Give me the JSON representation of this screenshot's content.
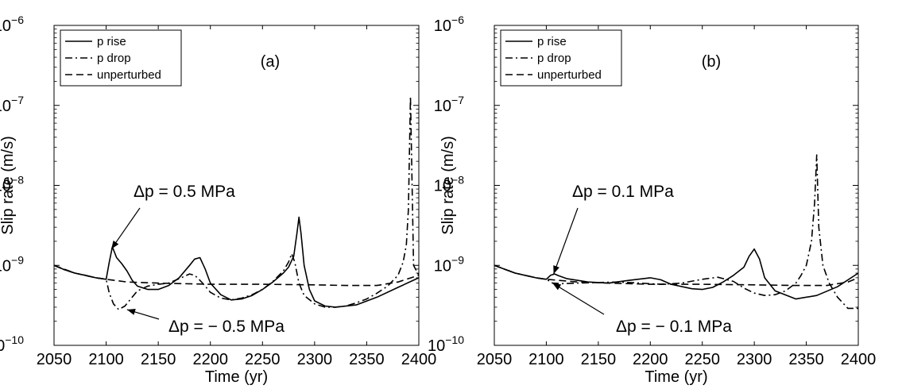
{
  "chart_data": [
    {
      "type": "line",
      "panel_label": "(a)",
      "xlabel": "Time (yr)",
      "ylabel": "Slip rate (m/s)",
      "xlim": [
        2050,
        2400
      ],
      "ylim": [
        1e-10,
        1e-06
      ],
      "yscale": "log",
      "x_ticks": [
        "2050",
        "2100",
        "2150",
        "2200",
        "2250",
        "2300",
        "2350",
        "2400"
      ],
      "y_ticks": [
        {
          "base": "10",
          "exp": "−10"
        },
        {
          "base": "10",
          "exp": "−9"
        },
        {
          "base": "10",
          "exp": "−8"
        },
        {
          "base": "10",
          "exp": "−7"
        },
        {
          "base": "10",
          "exp": "−6"
        }
      ],
      "legend": {
        "placement": "top-left",
        "entries": [
          "p rise",
          "p drop",
          "unperturbed"
        ]
      },
      "annotations": [
        {
          "text": "Δp = 0.5 MPa",
          "points_to": [
            2105,
            1.6e-09
          ]
        },
        {
          "text": "Δp = − 0.5 MPa",
          "points_to": [
            2120,
            2.8e-10
          ]
        }
      ],
      "series": [
        {
          "name": "p rise",
          "style": "solid",
          "x": [
            2050,
            2060,
            2070,
            2080,
            2090,
            2100,
            2103,
            2106,
            2110,
            2115,
            2120,
            2125,
            2130,
            2140,
            2150,
            2160,
            2170,
            2180,
            2185,
            2190,
            2195,
            2200,
            2210,
            2220,
            2230,
            2240,
            2250,
            2260,
            2270,
            2275,
            2280,
            2283,
            2285,
            2287,
            2290,
            2295,
            2300,
            2310,
            2320,
            2340,
            2360,
            2380,
            2400
          ],
          "y": [
            1e-09,
            8.8e-10,
            8e-10,
            7.5e-10,
            7e-10,
            6.7e-10,
            1.1e-09,
            1.7e-09,
            1.25e-09,
            1.05e-09,
            8.5e-10,
            6.5e-10,
            5.5e-10,
            5e-10,
            5e-10,
            5.6e-10,
            7e-10,
            1e-09,
            1.2e-09,
            1.25e-09,
            9e-10,
            6e-10,
            4.3e-10,
            3.7e-10,
            3.8e-10,
            4.2e-10,
            5e-10,
            6.2e-10,
            8e-10,
            9.5e-10,
            1.3e-09,
            2.5e-09,
            4e-09,
            2.5e-09,
            1e-09,
            5e-10,
            3.6e-10,
            3.1e-10,
            3e-10,
            3.2e-10,
            4e-10,
            5.3e-10,
            7e-10
          ]
        },
        {
          "name": "p drop",
          "style": "dashdot",
          "x": [
            2050,
            2060,
            2070,
            2080,
            2090,
            2100,
            2103,
            2107,
            2112,
            2118,
            2125,
            2130,
            2140,
            2150,
            2160,
            2170,
            2180,
            2185,
            2190,
            2195,
            2200,
            2210,
            2220,
            2230,
            2240,
            2250,
            2260,
            2270,
            2275,
            2278,
            2281,
            2285,
            2290,
            2300,
            2310,
            2320,
            2330,
            2340,
            2350,
            2360,
            2370,
            2380,
            2385,
            2388,
            2390,
            2392,
            2395,
            2400
          ],
          "y": [
            1e-09,
            8.8e-10,
            8e-10,
            7.5e-10,
            7e-10,
            6.7e-10,
            4.5e-10,
            3.3e-10,
            2.8e-10,
            3.1e-10,
            4e-10,
            4.8e-10,
            5.5e-10,
            5.8e-10,
            6e-10,
            6.8e-10,
            7.8e-10,
            7.5e-10,
            6.5e-10,
            5.5e-10,
            4.6e-10,
            3.9e-10,
            3.7e-10,
            3.9e-10,
            4.3e-10,
            5e-10,
            6.3e-10,
            8.5e-10,
            1.1e-09,
            1.4e-09,
            1.1e-09,
            6e-10,
            4.2e-10,
            3.3e-10,
            3e-10,
            3e-10,
            3.1e-10,
            3.4e-10,
            3.8e-10,
            4.5e-10,
            5.5e-10,
            7.5e-10,
            1.1e-09,
            1.8e-09,
            5e-09,
            1.3e-07,
            1e-09,
            7.5e-10
          ]
        },
        {
          "name": "unperturbed",
          "style": "dashed",
          "x": [
            2050,
            2070,
            2090,
            2100,
            2120,
            2150,
            2200,
            2250,
            2300,
            2330,
            2360,
            2380,
            2400
          ],
          "y": [
            1e-09,
            8e-10,
            7e-10,
            6.7e-10,
            6.2e-10,
            6e-10,
            5.8e-10,
            5.8e-10,
            5.7e-10,
            5.6e-10,
            5.6e-10,
            6.2e-10,
            7.5e-10
          ]
        }
      ]
    },
    {
      "type": "line",
      "panel_label": "(b)",
      "xlabel": "Time (yr)",
      "ylabel": "Slip rate (m/s)",
      "xlim": [
        2050,
        2400
      ],
      "ylim": [
        1e-10,
        1e-06
      ],
      "yscale": "log",
      "x_ticks": [
        "2050",
        "2100",
        "2150",
        "2200",
        "2250",
        "2300",
        "2350",
        "2400"
      ],
      "y_ticks": [
        {
          "base": "10",
          "exp": "−10"
        },
        {
          "base": "10",
          "exp": "−9"
        },
        {
          "base": "10",
          "exp": "−8"
        },
        {
          "base": "10",
          "exp": "−7"
        },
        {
          "base": "10",
          "exp": "−6"
        }
      ],
      "legend": {
        "placement": "top-left",
        "entries": [
          "p rise",
          "p drop",
          "unperturbed"
        ]
      },
      "annotations": [
        {
          "text": "Δp = 0.1 MPa",
          "points_to": [
            2107,
            7.8e-10
          ]
        },
        {
          "text": "Δp = − 0.1 MPa",
          "points_to": [
            2106,
            6e-10
          ]
        }
      ],
      "series": [
        {
          "name": "p rise",
          "style": "solid",
          "x": [
            2050,
            2070,
            2090,
            2100,
            2104,
            2108,
            2112,
            2120,
            2140,
            2160,
            2180,
            2200,
            2210,
            2220,
            2240,
            2250,
            2260,
            2270,
            2280,
            2290,
            2295,
            2300,
            2305,
            2310,
            2320,
            2340,
            2360,
            2380,
            2400
          ],
          "y": [
            1e-09,
            8e-10,
            7e-10,
            6.7e-10,
            7.5e-10,
            7.8e-10,
            7.4e-10,
            6.8e-10,
            6.2e-10,
            6e-10,
            6.5e-10,
            7e-10,
            6.6e-10,
            5.8e-10,
            5.1e-10,
            5e-10,
            5.3e-10,
            6.2e-10,
            7.5e-10,
            9.5e-10,
            1.3e-09,
            1.6e-09,
            1.2e-09,
            7e-10,
            4.8e-10,
            3.8e-10,
            4.2e-10,
            5.4e-10,
            8e-10
          ]
        },
        {
          "name": "p drop",
          "style": "dashdot",
          "x": [
            2050,
            2070,
            2090,
            2100,
            2106,
            2115,
            2130,
            2150,
            2170,
            2190,
            2210,
            2230,
            2250,
            2265,
            2280,
            2290,
            2300,
            2310,
            2320,
            2330,
            2340,
            2345,
            2350,
            2355,
            2358,
            2360,
            2362,
            2366,
            2372,
            2380,
            2390,
            2400
          ],
          "y": [
            1e-09,
            8e-10,
            7e-10,
            6.7e-10,
            6e-10,
            5.9e-10,
            6e-10,
            6.1e-10,
            6.2e-10,
            6e-10,
            5.8e-10,
            6e-10,
            6.7e-10,
            7.1e-10,
            6.3e-10,
            5.2e-10,
            4.5e-10,
            4.2e-10,
            4.3e-10,
            4.8e-10,
            6e-10,
            7.5e-10,
            1e-09,
            2e-09,
            6e-09,
            2.4e-08,
            3e-09,
            1e-09,
            6e-10,
            4e-10,
            2.9e-10,
            2.9e-10
          ]
        },
        {
          "name": "unperturbed",
          "style": "dashed",
          "x": [
            2050,
            2070,
            2090,
            2100,
            2130,
            2160,
            2200,
            2250,
            2300,
            2340,
            2370,
            2390,
            2400
          ],
          "y": [
            1e-09,
            8e-10,
            7e-10,
            6.7e-10,
            6.2e-10,
            6e-10,
            5.8e-10,
            5.8e-10,
            5.7e-10,
            5.6e-10,
            5.6e-10,
            6.2e-10,
            7e-10
          ]
        }
      ]
    }
  ]
}
